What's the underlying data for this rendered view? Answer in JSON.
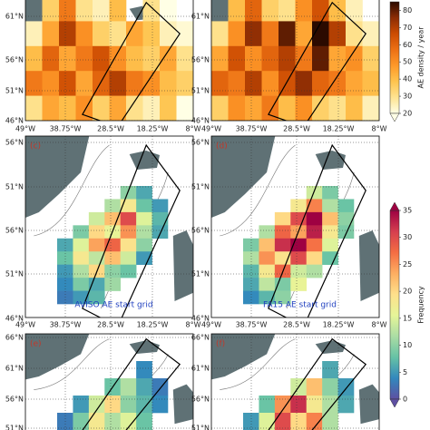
{
  "colorbars": [
    {
      "label": "AE density / year",
      "ticks": [
        20,
        30,
        40,
        50,
        60,
        70,
        80
      ],
      "lim": [
        20,
        85
      ],
      "colors": [
        "#ffffe5",
        "#fee391",
        "#fec44f",
        "#fe9929",
        "#ec7014",
        "#cc4c02",
        "#8c2d04",
        "#2b0a00"
      ]
    },
    {
      "label": "Frequency",
      "ticks": [
        0,
        5,
        10,
        15,
        20,
        25,
        30,
        35
      ],
      "lim": [
        0,
        35
      ],
      "colors": [
        "#5e4fa2",
        "#3288bd",
        "#66c2a5",
        "#abdda4",
        "#e6f598",
        "#fee08b",
        "#fdae61",
        "#f46d43",
        "#d53e4f",
        "#9e0142"
      ]
    }
  ],
  "rows": [
    {
      "colorbar": 0,
      "lat_labels": [
        "61°N",
        "56°N",
        "51°N",
        "46°N"
      ],
      "lon_labels": [
        "49°W",
        "38.75°W",
        "28.5°W",
        "18.25°W",
        "8°W"
      ],
      "panels": [
        {
          "cells": [
            [
              null,
              35,
              55,
              30,
              25,
              40,
              null,
              30,
              20,
              null
            ],
            [
              25,
              45,
              70,
              50,
              35,
              30,
              45,
              38,
              25,
              22
            ],
            [
              40,
              60,
              45,
              55,
              65,
              50,
              40,
              35,
              45,
              30
            ],
            [
              55,
              50,
              65,
              45,
              60,
              70,
              55,
              50,
              40,
              35
            ],
            [
              30,
              45,
              40,
              50,
              35,
              45,
              30,
              25,
              38,
              20
            ]
          ]
        },
        {
          "cells": [
            [
              null,
              40,
              60,
              35,
              30,
              50,
              65,
              40,
              25,
              null
            ],
            [
              30,
              50,
              75,
              55,
              80,
              45,
              85,
              70,
              30,
              25
            ],
            [
              45,
              65,
              50,
              60,
              70,
              55,
              80,
              45,
              50,
              35
            ],
            [
              60,
              55,
              70,
              50,
              65,
              75,
              60,
              55,
              45,
              40
            ],
            [
              35,
              50,
              45,
              55,
              40,
              50,
              35,
              30,
              40,
              25
            ]
          ]
        }
      ]
    },
    {
      "colorbar": 1,
      "lat_labels": [
        "56°N",
        "51°N",
        "56°N",
        "51°N",
        "46°N"
      ],
      "lon_labels": [
        "49°W",
        "38.75°W",
        "28.5°W",
        "18.25°W",
        "8°W"
      ],
      "panels": [
        {
          "label": "(c)",
          "note": "AVISO AE start grid",
          "cells": [
            [
              null,
              null,
              null,
              null,
              10,
              6,
              null
            ],
            [
              null,
              null,
              null,
              12,
              18,
              8,
              5
            ],
            [
              null,
              null,
              14,
              22,
              30,
              15,
              7
            ],
            [
              null,
              9,
              20,
              16,
              25,
              12,
              6
            ],
            [
              6,
              15,
              24,
              28,
              19,
              10,
              null
            ],
            [
              8,
              18,
              13,
              22,
              14,
              5,
              null
            ],
            [
              5,
              12,
              20,
              10,
              8,
              null,
              null
            ],
            [
              4,
              9,
              6,
              11,
              null,
              null,
              null
            ],
            [
              3,
              5,
              7,
              null,
              null,
              null,
              null
            ]
          ]
        },
        {
          "label": "(d)",
          "note": "FA15 AE start grid",
          "cells": [
            [
              null,
              null,
              null,
              null,
              14,
              9,
              null
            ],
            [
              null,
              null,
              null,
              18,
              26,
              12,
              8
            ],
            [
              null,
              null,
              20,
              30,
              35,
              22,
              10
            ],
            [
              null,
              12,
              28,
              24,
              33,
              18,
              9
            ],
            [
              9,
              22,
              32,
              35,
              27,
              15,
              null
            ],
            [
              12,
              25,
              19,
              30,
              20,
              8,
              null
            ],
            [
              7,
              18,
              28,
              14,
              12,
              null,
              null
            ],
            [
              6,
              13,
              9,
              16,
              null,
              null,
              null
            ],
            [
              4,
              7,
              10,
              null,
              null,
              null,
              null
            ]
          ]
        }
      ]
    },
    {
      "colorbar": 1,
      "lat_labels": [
        "66°N",
        "61°N",
        "56°N",
        "51°N"
      ],
      "panels": [
        {
          "label": "(e)",
          "cells": [
            [
              null,
              null,
              null,
              null,
              null,
              4,
              null
            ],
            [
              null,
              null,
              null,
              8,
              12,
              6,
              3
            ],
            [
              null,
              5,
              14,
              20,
              10,
              7,
              4
            ],
            [
              3,
              9,
              18,
              12,
              15,
              8,
              null
            ]
          ]
        },
        {
          "label": "(f)",
          "cells": [
            [
              null,
              null,
              null,
              null,
              null,
              6,
              null
            ],
            [
              null,
              null,
              null,
              14,
              22,
              10,
              5
            ],
            [
              null,
              8,
              25,
              32,
              18,
              12,
              6
            ],
            [
              5,
              15,
              30,
              20,
              26,
              12,
              null
            ]
          ]
        }
      ]
    }
  ]
}
